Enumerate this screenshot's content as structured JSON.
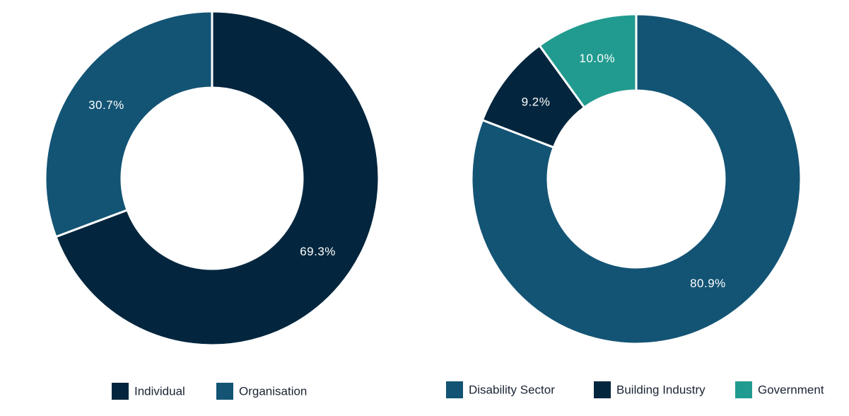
{
  "chart_data": [
    {
      "type": "pie",
      "categories": [
        "Individual",
        "Organisation"
      ],
      "values": [
        69.3,
        30.7
      ],
      "labels": [
        "69.3%",
        "30.7%"
      ],
      "colors": [
        "#03263e",
        "#135474"
      ],
      "legend": [
        "Individual",
        "Organisation"
      ],
      "legend_position": "bottom",
      "donut": true
    },
    {
      "type": "pie",
      "categories": [
        "Disability Sector",
        "Building Industry",
        "Government"
      ],
      "values": [
        80.9,
        9.2,
        10.0
      ],
      "labels": [
        "80.9%",
        "9.2%",
        "10.0%"
      ],
      "colors": [
        "#135474",
        "#03263e",
        "#219b8f"
      ],
      "legend": [
        "Disability Sector",
        "Building Industry",
        "Government"
      ],
      "legend_position": "bottom",
      "donut": true
    }
  ]
}
